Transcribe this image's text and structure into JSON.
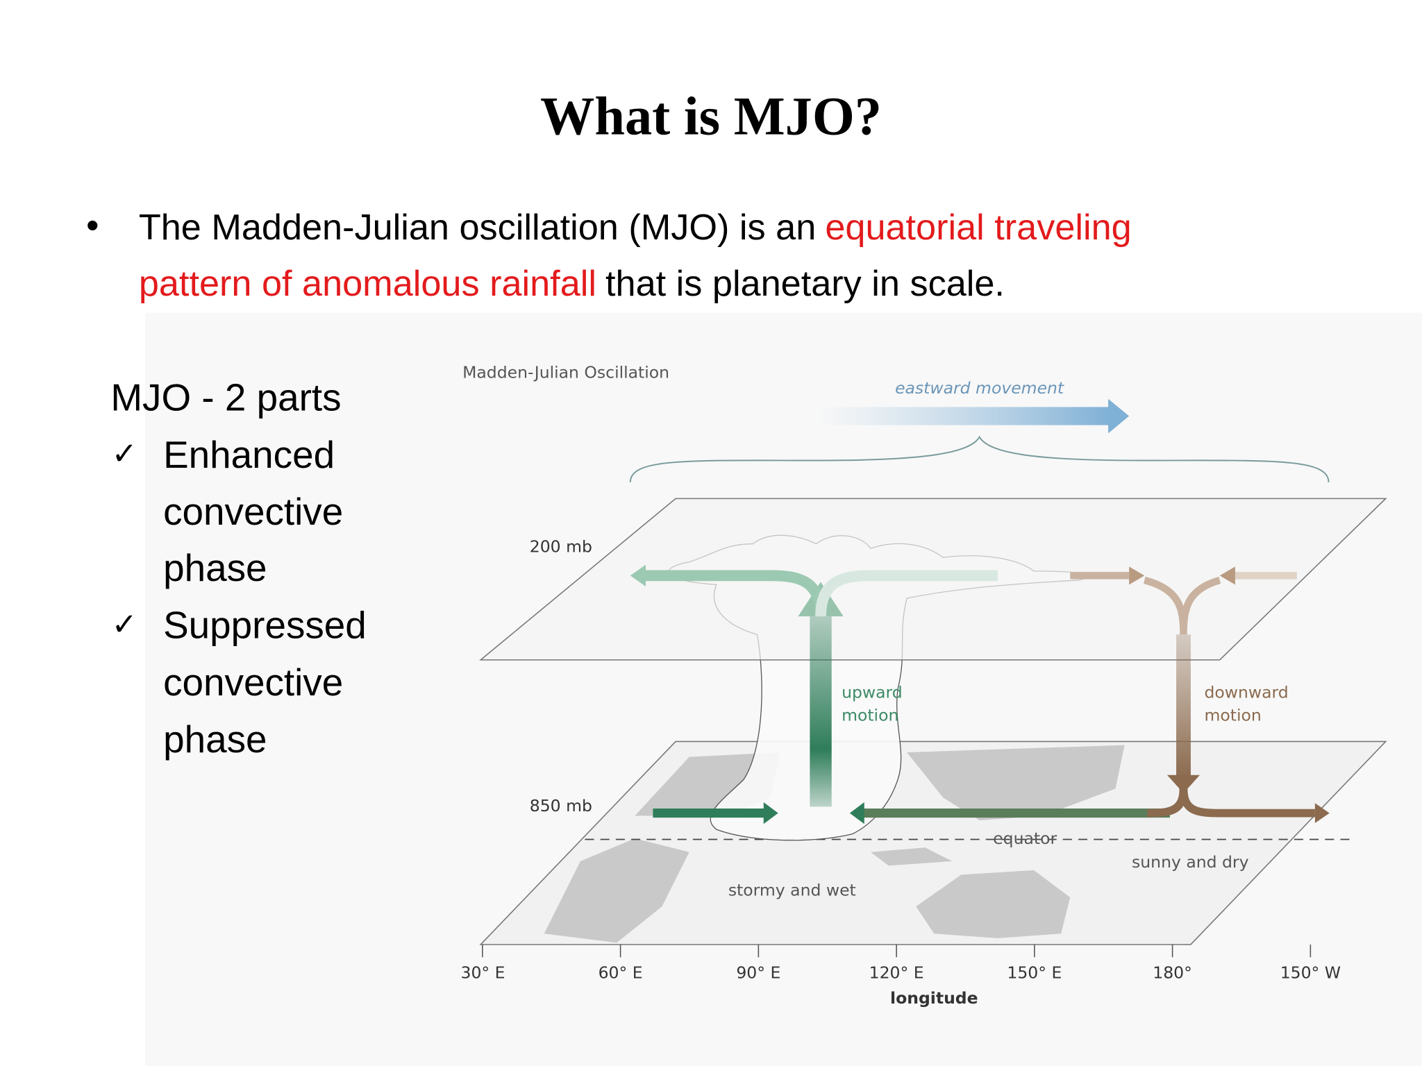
{
  "slide": {
    "title": "What is MJO?",
    "bullet": {
      "line1": [
        "The Madden-Julian oscillation (MJO) is an",
        "equatorial traveling"
      ],
      "line2": [
        "pattern of anomalous rainfall",
        "that is planetary in scale."
      ]
    },
    "parts": {
      "heading": "MJO - 2 parts",
      "items": [
        [
          "Enhanced",
          "convective",
          "phase"
        ],
        [
          "Suppressed",
          "convective",
          "phase"
        ]
      ]
    },
    "diagram": {
      "title": "Madden-Julian Oscillation",
      "movement": "eastward movement",
      "upper_level": "200 mb",
      "lower_level": "850 mb",
      "upward": [
        "upward",
        "motion"
      ],
      "downward": [
        "downward",
        "motion"
      ],
      "equator": "equator",
      "stormy": "stormy and wet",
      "sunny": "sunny and dry",
      "longitudes": [
        "30° E",
        "60° E",
        "90° E",
        "120° E",
        "150° E",
        "180°",
        "150° W"
      ],
      "axis_label": "longitude"
    }
  }
}
